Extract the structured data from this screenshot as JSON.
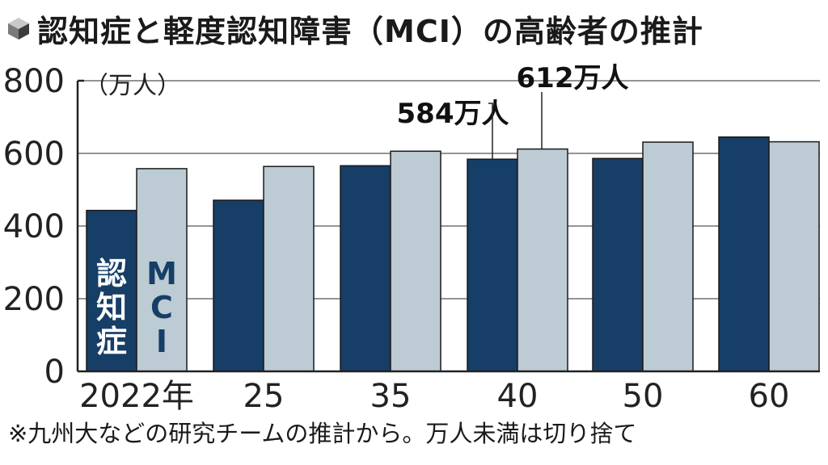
{
  "title": "認知症と軽度認知障害（MCI）の高齢者の推計",
  "unit_label": "（万人）",
  "footnote": "※九州大などの研究チームの推計から。万人未満は切り捨て",
  "colors": {
    "dementia": "#163e66",
    "mci": "#bccbd4",
    "axis": "#222222"
  },
  "chart_data": {
    "type": "bar",
    "categories": [
      "2022年",
      "25",
      "35",
      "40",
      "50",
      "60"
    ],
    "series": [
      {
        "name": "認知症",
        "values": [
          443,
          471,
          566,
          584,
          586,
          645
        ]
      },
      {
        "name": "MCI",
        "values": [
          558,
          564,
          606,
          612,
          631,
          632
        ]
      }
    ],
    "ylim": [
      0,
      800
    ],
    "yticks": [
      0,
      200,
      400,
      600,
      800
    ],
    "annotations": [
      {
        "text": "584万人",
        "category": "40",
        "series": "認知症"
      },
      {
        "text": "612万人",
        "category": "40",
        "series": "MCI"
      }
    ],
    "inbar_labels": {
      "dementia": "認知症",
      "mci": "MCI"
    },
    "legend": "in-bar labels on first group"
  }
}
